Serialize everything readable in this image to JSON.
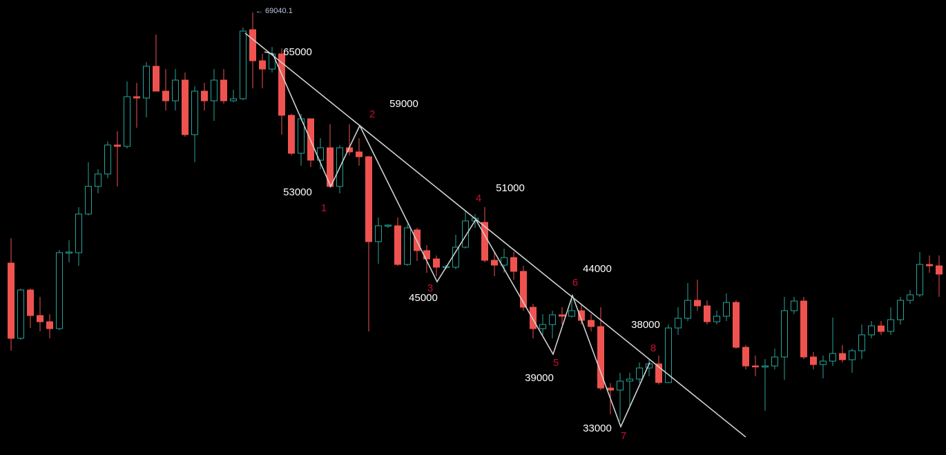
{
  "chart_data": {
    "type": "candlestick",
    "ylim": [
      30580,
      70120
    ],
    "up_color": "#26a69a",
    "down_color": "#ef5350",
    "high_label": "← 69040.1",
    "levels": [
      "65000",
      "59000",
      "53000",
      "45000",
      "51000",
      "44000",
      "39000",
      "38000",
      "33000"
    ],
    "waves": [
      "1",
      "2",
      "3",
      "4",
      "5",
      "6",
      "7",
      "8"
    ],
    "ohlc": [
      [
        47260,
        49420,
        39640,
        40720
      ],
      [
        40720,
        45040,
        40600,
        44920
      ],
      [
        44920,
        45040,
        41620,
        42700
      ],
      [
        42700,
        44320,
        41320,
        42160
      ],
      [
        42160,
        42820,
        40720,
        41560
      ],
      [
        41560,
        48400,
        41440,
        48160
      ],
      [
        48160,
        49240,
        47320,
        48220
      ],
      [
        48160,
        52120,
        47020,
        51520
      ],
      [
        51520,
        56020,
        51400,
        53920
      ],
      [
        53920,
        55420,
        53320,
        55000
      ],
      [
        55000,
        57820,
        54640,
        57520
      ],
      [
        57520,
        58720,
        53920,
        57400
      ],
      [
        57400,
        63040,
        57220,
        61720
      ],
      [
        61720,
        62920,
        59020,
        61600
      ],
      [
        61600,
        64720,
        59920,
        64360
      ],
      [
        64360,
        67120,
        62200,
        62200
      ],
      [
        62200,
        64120,
        60520,
        61360
      ],
      [
        61360,
        64120,
        60520,
        63160
      ],
      [
        63160,
        63820,
        58240,
        58420
      ],
      [
        58420,
        62620,
        56020,
        62200
      ],
      [
        62200,
        62920,
        60520,
        61360
      ],
      [
        61360,
        64120,
        59620,
        63160
      ],
      [
        63160,
        64120,
        61120,
        61360
      ],
      [
        61360,
        62320,
        61240,
        61540
      ],
      [
        61540,
        67720,
        61420,
        67420
      ],
      [
        67540,
        69040.1,
        62440,
        64840
      ],
      [
        64840,
        65440,
        62440,
        64120
      ],
      [
        64120,
        66040,
        63820,
        65440
      ],
      [
        65440,
        65920,
        58420,
        60100
      ],
      [
        60100,
        60220,
        56620,
        56800
      ],
      [
        56800,
        60220,
        55720,
        59800
      ],
      [
        59800,
        59800,
        55600,
        56200
      ],
      [
        56200,
        58120,
        55420,
        57280
      ],
      [
        57280,
        59320,
        53800,
        53920
      ],
      [
        53920,
        57520,
        53320,
        57280
      ],
      [
        57280,
        59320,
        56620,
        56920
      ],
      [
        56920,
        58120,
        55720,
        56500
      ],
      [
        56500,
        56560,
        41320,
        49120
      ],
      [
        49120,
        51220,
        47200,
        50500
      ],
      [
        50500,
        50620,
        50320,
        50560
      ],
      [
        50500,
        51220,
        47020,
        47140
      ],
      [
        47140,
        50620,
        47020,
        50320
      ],
      [
        50140,
        50320,
        47440,
        48340
      ],
      [
        48340,
        48820,
        46420,
        47620
      ],
      [
        47620,
        47920,
        46120,
        46900
      ],
      [
        46900,
        47080,
        46720,
        46960
      ],
      [
        46900,
        49720,
        46720,
        48640
      ],
      [
        48640,
        51820,
        48520,
        50920
      ],
      [
        50920,
        51520,
        50320,
        51160
      ],
      [
        50800,
        52120,
        47320,
        47500
      ],
      [
        47500,
        48220,
        46120,
        47080
      ],
      [
        47080,
        48520,
        46420,
        47740
      ],
      [
        47740,
        48220,
        45820,
        46540
      ],
      [
        46540,
        47020,
        43120,
        43420
      ],
      [
        43420,
        43720,
        40720,
        41560
      ],
      [
        41560,
        42820,
        41020,
        41920
      ],
      [
        41920,
        43120,
        40720,
        42760
      ],
      [
        42760,
        43420,
        41920,
        42640
      ],
      [
        42640,
        44320,
        42520,
        43120
      ],
      [
        43120,
        43720,
        41920,
        42280
      ],
      [
        42280,
        42820,
        41320,
        41740
      ],
      [
        41740,
        43420,
        36220,
        36400
      ],
      [
        36400,
        36820,
        34120,
        36220
      ],
      [
        36220,
        37720,
        33520,
        37000
      ],
      [
        37000,
        37720,
        34720,
        37180
      ],
      [
        37180,
        38620,
        36820,
        38140
      ],
      [
        38140,
        38920,
        37420,
        38500
      ],
      [
        38500,
        39220,
        36700,
        36880
      ],
      [
        36880,
        41920,
        36820,
        41620
      ],
      [
        41620,
        43420,
        41020,
        42460
      ],
      [
        42460,
        45520,
        42220,
        44020
      ],
      [
        44020,
        45820,
        43120,
        43540
      ],
      [
        43540,
        44020,
        41920,
        42160
      ],
      [
        42160,
        43120,
        41920,
        42640
      ],
      [
        42640,
        44620,
        42220,
        43840
      ],
      [
        43840,
        44020,
        39820,
        39940
      ],
      [
        39940,
        40120,
        38020,
        38320
      ],
      [
        38320,
        39220,
        37420,
        38260
      ],
      [
        38260,
        38920,
        34420,
        38320
      ],
      [
        38320,
        39820,
        38020,
        39100
      ],
      [
        39100,
        44320,
        37120,
        43120
      ],
      [
        43120,
        44320,
        42820,
        43960
      ],
      [
        43960,
        44320,
        38920,
        39100
      ],
      [
        39100,
        39520,
        38020,
        38440
      ],
      [
        38440,
        39220,
        37240,
        38740
      ],
      [
        38740,
        42520,
        38320,
        39400
      ],
      [
        39400,
        40120,
        38620,
        38860
      ],
      [
        38860,
        39820,
        37720,
        39640
      ],
      [
        39640,
        41920,
        38920,
        41020
      ],
      [
        41020,
        42220,
        40720,
        41800
      ],
      [
        41800,
        42220,
        41020,
        41320
      ],
      [
        41320,
        43420,
        41020,
        42340
      ],
      [
        42340,
        44320,
        41920,
        44020
      ],
      [
        44020,
        44920,
        43720,
        44500
      ],
      [
        44500,
        48220,
        44320,
        47140
      ],
      [
        47140,
        47920,
        46420,
        47020
      ],
      [
        47020,
        47920,
        44320,
        46300
      ]
    ]
  }
}
